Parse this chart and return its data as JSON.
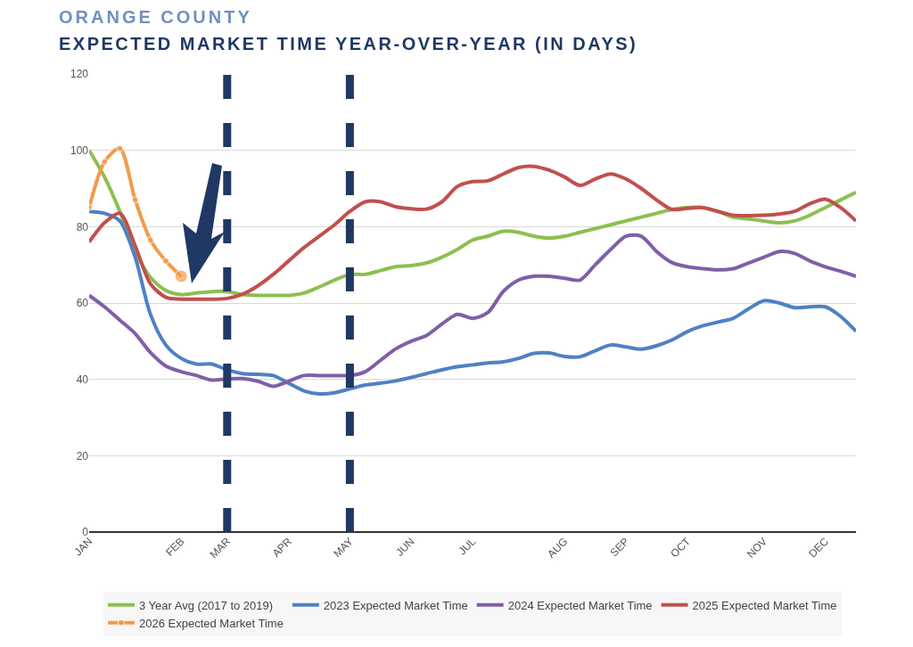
{
  "chart_data": {
    "type": "line",
    "title": "ORANGE COUNTY",
    "subtitle": "EXPECTED MARKET TIME YEAR-OVER-YEAR (IN DAYS)",
    "categories": [
      "JAN",
      null,
      null,
      null,
      null,
      null,
      "FEB",
      null,
      null,
      "MAR",
      null,
      null,
      null,
      "APR",
      null,
      null,
      null,
      "MAY",
      null,
      null,
      null,
      "JUN",
      null,
      null,
      null,
      "JUL",
      null,
      null,
      null,
      null,
      null,
      "AUG",
      null,
      null,
      null,
      "SEP",
      null,
      null,
      null,
      "OCT",
      null,
      null,
      null,
      null,
      "NOV",
      null,
      null,
      null,
      "DEC",
      null,
      null
    ],
    "ylim": [
      0,
      120
    ],
    "yticks": [
      0,
      20,
      40,
      60,
      80,
      100,
      120
    ],
    "grid": "y",
    "legend": "bottom",
    "series": [
      {
        "name": "3 Year Avg (2017 to 2019)",
        "color": "#8dbf4f",
        "values": [
          100,
          93,
          84,
          73.5,
          66.7,
          63.3,
          62.2,
          62.6,
          63,
          63,
          62.2,
          62,
          62,
          62,
          62.6,
          64.2,
          66,
          67.5,
          67.5,
          68.5,
          69.5,
          69.8,
          70.5,
          72,
          74,
          76.5,
          77.5,
          78.8,
          78.5,
          77.5,
          77,
          77.5,
          78.5,
          79.5,
          80.5,
          81.5,
          82.5,
          83.5,
          84.5,
          85,
          85,
          84,
          82.5,
          82,
          81.5,
          81,
          81.5,
          83,
          85,
          87,
          89
        ]
      },
      {
        "name": "2023 Expected Market Time",
        "color": "#4f81c4",
        "values": [
          84,
          83.5,
          81.5,
          72,
          57,
          49,
          45.5,
          44,
          44,
          42.5,
          41.5,
          41.3,
          41,
          39,
          37,
          36.2,
          36.5,
          37.5,
          38.5,
          39,
          39.6,
          40.5,
          41.5,
          42.5,
          43.3,
          43.8,
          44.3,
          44.6,
          45.5,
          46.8,
          46.9,
          46,
          45.9,
          47.5,
          49,
          48.5,
          47.9,
          48.8,
          50.3,
          52.5,
          54,
          55,
          56,
          58.5,
          60.6,
          60,
          58.8,
          59,
          59,
          56.5,
          52.6
        ]
      },
      {
        "name": "2024 Expected Market Time",
        "color": "#7f5fa8",
        "values": [
          62,
          59,
          55.5,
          52,
          47,
          43.5,
          42,
          41,
          39.8,
          40.1,
          40.2,
          39.5,
          38.2,
          39.5,
          41,
          41,
          41,
          41,
          42,
          45,
          48,
          50,
          51.5,
          54.5,
          57,
          56,
          57.5,
          63,
          66,
          67,
          67,
          66.5,
          66,
          70,
          74,
          77.5,
          77.5,
          73.5,
          70.6,
          69.5,
          69,
          68.7,
          69,
          70.5,
          72,
          73.5,
          73,
          71,
          69.5,
          68.3,
          67
        ]
      },
      {
        "name": "2025 Expected Market Time",
        "color": "#c0504d",
        "values": [
          76,
          81,
          83.5,
          75,
          65,
          61.5,
          61,
          61,
          61,
          61.2,
          62.3,
          64.5,
          67.5,
          71,
          74.5,
          77.5,
          80.5,
          84,
          86.5,
          86.5,
          85.2,
          84.7,
          84.6,
          86.5,
          90.5,
          91.8,
          92,
          93.8,
          95.5,
          95.8,
          94.8,
          93,
          90.8,
          92.5,
          93.8,
          92.5,
          90,
          87,
          84.5,
          84.8,
          85,
          84,
          83,
          82.9,
          83,
          83.3,
          84,
          86,
          87.2,
          85,
          81.5
        ]
      },
      {
        "name": "2026 Expected Market Time",
        "color": "#f29b4b",
        "marker": "circle",
        "values": [
          85,
          97,
          100.5,
          87,
          76.5,
          71,
          67,
          null,
          null,
          null,
          null,
          null,
          null,
          null,
          null,
          null,
          null,
          null,
          null,
          null,
          null,
          null,
          null,
          null,
          null,
          null,
          null,
          null,
          null,
          null,
          null,
          null,
          null,
          null,
          null,
          null,
          null,
          null,
          null,
          null,
          null,
          null,
          null,
          null,
          null,
          null,
          null,
          null,
          null,
          null,
          null
        ]
      }
    ],
    "ref_lines": [
      {
        "axis": "x",
        "value": "MAR",
        "color": "#1f3864",
        "line_style": "dashed"
      },
      {
        "axis": "x",
        "value": "MAY",
        "color": "#1f3864",
        "line_style": "dashed"
      }
    ]
  }
}
